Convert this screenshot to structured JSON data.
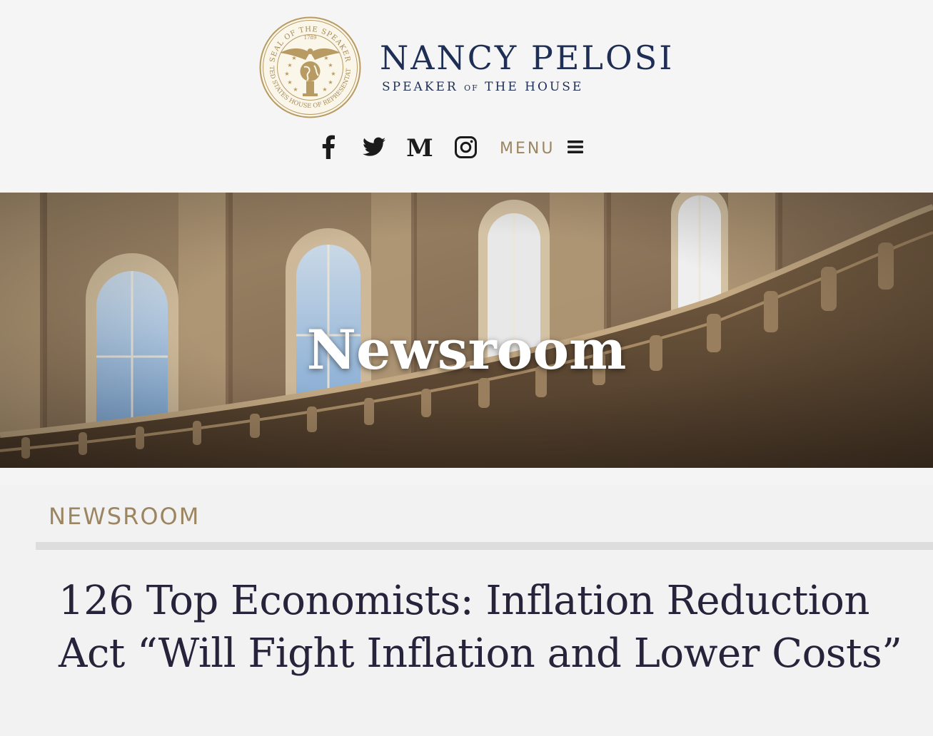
{
  "header": {
    "seal": {
      "top_text": "SEAL OF THE SPEAKER",
      "bottom_text": "UNITED STATES HOUSE OF REPRESENTATIVES",
      "year": "1789"
    },
    "brand_name": "NANCY PELOSI",
    "brand_sub_part1": "SPEAKER ",
    "brand_sub_small": "OF",
    "brand_sub_part2": " THE HOUSE",
    "menu_label": "MENU",
    "social": [
      {
        "name": "facebook",
        "icon": "facebook-icon"
      },
      {
        "name": "twitter",
        "icon": "twitter-icon"
      },
      {
        "name": "medium",
        "icon": "medium-icon",
        "glyph": "M"
      },
      {
        "name": "instagram",
        "icon": "instagram-icon"
      }
    ]
  },
  "hero": {
    "title": "Newsroom"
  },
  "section": {
    "label": "NEWSROOM"
  },
  "article": {
    "title": "126 Top Economists: Inflation Reduction Act “Will Fight Inflation and Lower Costs”"
  },
  "colors": {
    "navy": "#1f2e55",
    "gold": "#9c8662",
    "title": "#26233a",
    "background": "#f4f4f4"
  }
}
